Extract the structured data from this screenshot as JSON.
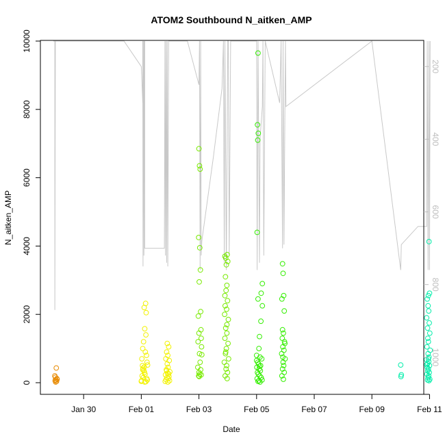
{
  "chart_data": {
    "type": "scatter",
    "title": "ATOM2 Southbound N_aitken_AMP",
    "xlabel": "Date",
    "ylabel": "N_aitken_AMP",
    "xlim": [
      -2.5,
      10.8
    ],
    "ylim": [
      0,
      10000
    ],
    "x_ticks": [
      {
        "value": -1,
        "label": "Jan 30"
      },
      {
        "value": 1,
        "label": "Feb 01"
      },
      {
        "value": 3,
        "label": "Feb 03"
      },
      {
        "value": 5,
        "label": "Feb 05"
      },
      {
        "value": 7,
        "label": "Feb 07"
      },
      {
        "value": 9,
        "label": "Feb 09"
      },
      {
        "value": 11,
        "label": "Feb 11"
      }
    ],
    "y_ticks": [
      {
        "value": 0,
        "label": "0"
      },
      {
        "value": 2000,
        "label": "2000"
      },
      {
        "value": 4000,
        "label": "4000"
      },
      {
        "value": 6000,
        "label": "6000"
      },
      {
        "value": 8000,
        "label": "8000"
      },
      {
        "value": 10000,
        "label": "10000"
      }
    ],
    "right_axis": {
      "lim": [
        1070,
        130
      ],
      "ticks": [
        {
          "value": 200,
          "label": "200"
        },
        {
          "value": 400,
          "label": "400"
        },
        {
          "value": 600,
          "label": "600"
        },
        {
          "value": 800,
          "label": "800"
        },
        {
          "value": 1000,
          "label": "1000"
        }
      ],
      "color": "#bdbdbd"
    },
    "grid": false,
    "legend": "none",
    "series": [
      {
        "color": "#e88a00",
        "points": [
          [
            -1.95,
            430
          ],
          [
            -1.98,
            160
          ],
          [
            -1.93,
            120
          ],
          [
            -1.96,
            80
          ],
          [
            -1.99,
            60
          ],
          [
            -1.94,
            40
          ],
          [
            -2.0,
            200
          ],
          [
            -1.97,
            20
          ],
          [
            -1.92,
            100
          ]
        ]
      },
      {
        "color": "#f2f200",
        "points": [
          [
            1.15,
            2320
          ],
          [
            1.17,
            2050
          ],
          [
            1.1,
            2200
          ],
          [
            1.12,
            1580
          ],
          [
            1.16,
            1400
          ],
          [
            1.08,
            1200
          ],
          [
            1.05,
            1000
          ],
          [
            1.14,
            900
          ],
          [
            1.2,
            600
          ],
          [
            1.22,
            520
          ],
          [
            1.18,
            800
          ],
          [
            1.02,
            700
          ],
          [
            1.04,
            500
          ],
          [
            1.06,
            420
          ],
          [
            1.09,
            350
          ],
          [
            1.11,
            300
          ],
          [
            1.13,
            250
          ],
          [
            1.03,
            200
          ],
          [
            1.07,
            150
          ],
          [
            1.19,
            120
          ],
          [
            1.21,
            80
          ],
          [
            1.01,
            60
          ],
          [
            1.0,
            40
          ],
          [
            1.16,
            30
          ],
          [
            1.12,
            20
          ],
          [
            1.05,
            380
          ],
          [
            1.1,
            460
          ],
          [
            1.9,
            1150
          ],
          [
            1.95,
            1050
          ],
          [
            1.88,
            900
          ],
          [
            1.92,
            800
          ],
          [
            1.97,
            650
          ],
          [
            1.85,
            700
          ],
          [
            1.9,
            550
          ],
          [
            1.93,
            450
          ],
          [
            1.87,
            380
          ],
          [
            1.99,
            320
          ],
          [
            1.91,
            280
          ],
          [
            1.84,
            230
          ],
          [
            1.96,
            180
          ],
          [
            1.89,
            150
          ],
          [
            1.94,
            120
          ],
          [
            1.86,
            90
          ],
          [
            1.98,
            60
          ],
          [
            1.83,
            40
          ],
          [
            1.92,
            20
          ],
          [
            1.88,
            350
          ],
          [
            1.95,
            260
          ]
        ]
      },
      {
        "color": "#78ea00",
        "points": [
          [
            3.0,
            6850
          ],
          [
            3.02,
            6350
          ],
          [
            3.04,
            6250
          ],
          [
            2.99,
            4250
          ],
          [
            3.03,
            3950
          ],
          [
            3.05,
            3300
          ],
          [
            3.01,
            2950
          ],
          [
            3.06,
            2080
          ],
          [
            2.98,
            1950
          ],
          [
            3.07,
            1550
          ],
          [
            3.0,
            1450
          ],
          [
            3.08,
            1300
          ],
          [
            2.97,
            1200
          ],
          [
            3.09,
            1050
          ],
          [
            3.02,
            850
          ],
          [
            3.1,
            820
          ],
          [
            3.04,
            600
          ],
          [
            2.96,
            450
          ],
          [
            3.06,
            380
          ],
          [
            3.0,
            300
          ],
          [
            3.03,
            250
          ],
          [
            2.99,
            200
          ],
          [
            3.08,
            230
          ],
          [
            3.01,
            180
          ],
          [
            3.9,
            3700
          ],
          [
            3.93,
            3650
          ],
          [
            3.98,
            3750
          ],
          [
            4.0,
            3550
          ],
          [
            3.95,
            3450
          ],
          [
            3.92,
            3100
          ],
          [
            3.97,
            2850
          ],
          [
            3.94,
            2700
          ],
          [
            3.99,
            2400
          ],
          [
            3.91,
            2250
          ],
          [
            3.96,
            2150
          ],
          [
            3.89,
            2000
          ],
          [
            4.02,
            1850
          ],
          [
            3.93,
            1600
          ],
          [
            3.97,
            1450
          ],
          [
            3.9,
            1300
          ],
          [
            4.01,
            1150
          ],
          [
            3.95,
            1000
          ],
          [
            3.92,
            850
          ],
          [
            4.03,
            700
          ],
          [
            3.88,
            600
          ],
          [
            3.96,
            500
          ],
          [
            3.94,
            400
          ],
          [
            3.99,
            300
          ],
          [
            3.91,
            200
          ],
          [
            3.98,
            120
          ],
          [
            3.93,
            900
          ],
          [
            3.97,
            1700
          ],
          [
            3.9,
            2550
          ]
        ]
      },
      {
        "color": "#33ee00",
        "points": [
          [
            5.05,
            9650
          ],
          [
            5.03,
            7550
          ],
          [
            5.06,
            7300
          ],
          [
            5.04,
            7100
          ],
          [
            5.02,
            4400
          ],
          [
            5.2,
            2900
          ],
          [
            5.16,
            2620
          ],
          [
            5.05,
            2450
          ],
          [
            5.2,
            2250
          ],
          [
            5.15,
            1800
          ],
          [
            5.1,
            1350
          ],
          [
            5.08,
            1000
          ],
          [
            5.0,
            800
          ],
          [
            5.12,
            750
          ],
          [
            5.18,
            700
          ],
          [
            5.04,
            600
          ],
          [
            5.07,
            550
          ],
          [
            5.14,
            500
          ],
          [
            5.01,
            450
          ],
          [
            5.09,
            400
          ],
          [
            5.13,
            350
          ],
          [
            5.03,
            300
          ],
          [
            5.06,
            250
          ],
          [
            5.11,
            200
          ],
          [
            5.16,
            150
          ],
          [
            5.02,
            120
          ],
          [
            5.19,
            80
          ],
          [
            5.08,
            60
          ],
          [
            5.05,
            40
          ],
          [
            5.12,
            20
          ],
          [
            5.0,
            650
          ],
          [
            5.1,
            480
          ],
          [
            5.9,
            3480
          ],
          [
            5.92,
            3200
          ],
          [
            5.94,
            2550
          ],
          [
            5.88,
            2450
          ],
          [
            5.96,
            2100
          ],
          [
            5.9,
            1550
          ],
          [
            5.93,
            1450
          ],
          [
            5.89,
            1300
          ],
          [
            5.97,
            1200
          ],
          [
            5.91,
            1050
          ],
          [
            5.95,
            950
          ],
          [
            5.87,
            850
          ],
          [
            5.99,
            700
          ],
          [
            5.92,
            600
          ],
          [
            5.94,
            500
          ],
          [
            5.9,
            400
          ],
          [
            5.96,
            300
          ],
          [
            5.88,
            200
          ],
          [
            5.93,
            100
          ],
          [
            5.98,
            1150
          ],
          [
            5.91,
            750
          ]
        ]
      },
      {
        "color": "#00eeaa",
        "points": [
          [
            10.0,
            520
          ],
          [
            10.02,
            230
          ],
          [
            10.01,
            180
          ],
          [
            10.98,
            4130
          ],
          [
            11.0,
            2620
          ],
          [
            10.96,
            2550
          ],
          [
            10.92,
            2450
          ],
          [
            10.95,
            2250
          ],
          [
            10.97,
            2100
          ],
          [
            10.9,
            1900
          ],
          [
            10.99,
            1750
          ],
          [
            10.93,
            1600
          ],
          [
            11.01,
            1450
          ],
          [
            10.94,
            1300
          ],
          [
            10.96,
            1200
          ],
          [
            10.91,
            1050
          ],
          [
            11.02,
            950
          ],
          [
            10.95,
            850
          ],
          [
            10.98,
            750
          ],
          [
            10.89,
            680
          ],
          [
            10.97,
            620
          ],
          [
            10.93,
            560
          ],
          [
            11.0,
            500
          ],
          [
            10.92,
            450
          ],
          [
            10.96,
            400
          ],
          [
            10.94,
            350
          ],
          [
            10.99,
            300
          ],
          [
            10.91,
            250
          ],
          [
            10.97,
            200
          ],
          [
            10.95,
            150
          ],
          [
            11.01,
            100
          ],
          [
            10.93,
            80
          ],
          [
            10.98,
            60
          ],
          [
            10.9,
            530
          ],
          [
            10.96,
            700
          ]
        ]
      }
    ],
    "line_series": {
      "color": "#c8c8c8",
      "axis": "right",
      "points": [
        [
          -2.05,
          130
        ],
        [
          -2.0,
          130
        ],
        [
          -2.0,
          870
        ],
        [
          -1.98,
          130
        ],
        [
          0.4,
          130
        ],
        [
          1.0,
          200
        ],
        [
          1.05,
          300
        ],
        [
          1.05,
          130
        ],
        [
          1.06,
          750
        ],
        [
          1.08,
          130
        ],
        [
          1.09,
          720
        ],
        [
          1.1,
          130
        ],
        [
          1.11,
          520
        ],
        [
          1.12,
          130
        ],
        [
          1.12,
          700
        ],
        [
          1.8,
          700
        ],
        [
          1.82,
          130
        ],
        [
          1.84,
          720
        ],
        [
          1.86,
          130
        ],
        [
          1.88,
          740
        ],
        [
          1.9,
          130
        ],
        [
          1.92,
          750
        ],
        [
          1.95,
          130
        ],
        [
          2.0,
          130
        ],
        [
          2.6,
          130
        ],
        [
          3.0,
          250
        ],
        [
          3.02,
          130
        ],
        [
          3.04,
          760
        ],
        [
          3.06,
          130
        ],
        [
          3.08,
          720
        ],
        [
          3.1,
          680
        ],
        [
          3.5,
          450
        ],
        [
          3.8,
          260
        ],
        [
          3.85,
          130
        ],
        [
          3.88,
          740
        ],
        [
          3.9,
          130
        ],
        [
          3.95,
          760
        ],
        [
          4.0,
          130
        ],
        [
          4.02,
          130
        ],
        [
          4.05,
          720
        ],
        [
          4.1,
          130
        ],
        [
          4.5,
          130
        ],
        [
          5.0,
          130
        ],
        [
          5.02,
          760
        ],
        [
          5.05,
          130
        ],
        [
          5.1,
          740
        ],
        [
          5.12,
          400
        ],
        [
          5.2,
          310
        ],
        [
          5.22,
          130
        ],
        [
          5.25,
          720
        ],
        [
          5.3,
          130
        ],
        [
          5.8,
          300
        ],
        [
          5.85,
          130
        ],
        [
          5.9,
          700
        ],
        [
          5.92,
          130
        ],
        [
          5.95,
          690
        ],
        [
          6.0,
          130
        ],
        [
          6.02,
          310
        ],
        [
          9.0,
          130
        ],
        [
          10.0,
          760
        ],
        [
          10.02,
          690
        ],
        [
          10.6,
          640
        ],
        [
          10.9,
          640
        ],
        [
          10.92,
          130
        ],
        [
          10.95,
          760
        ],
        [
          10.98,
          130
        ],
        [
          11.0,
          760
        ],
        [
          11.02,
          130
        ]
      ]
    }
  }
}
